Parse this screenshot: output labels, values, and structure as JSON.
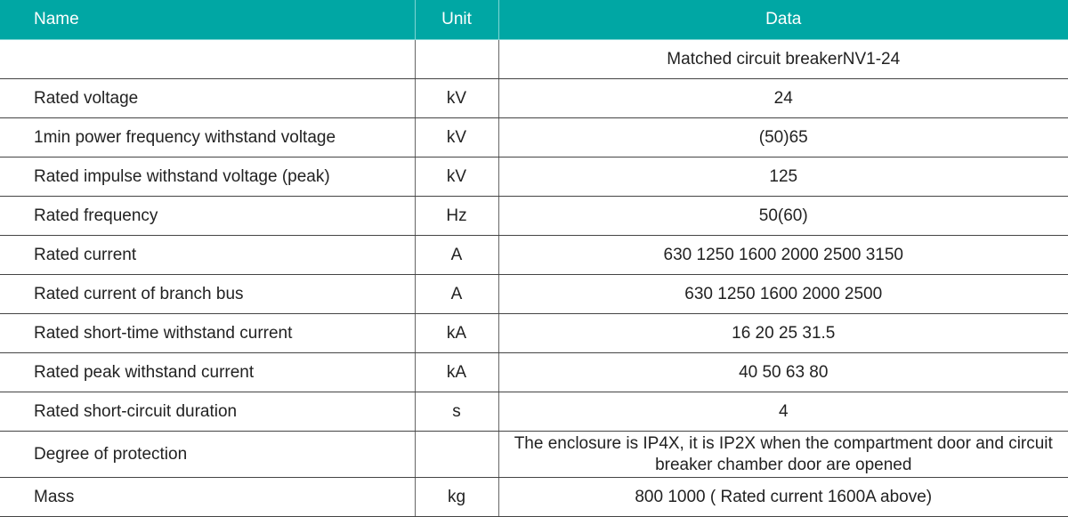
{
  "header": {
    "name": "Name",
    "unit": "Unit",
    "data": "Data"
  },
  "rows": [
    {
      "name": "",
      "unit": "",
      "data": "Matched circuit breakerNV1-24"
    },
    {
      "name": "Rated voltage",
      "unit": "kV",
      "data": "24"
    },
    {
      "name": "1min power frequency withstand voltage",
      "unit": "kV",
      "data": "(50)65"
    },
    {
      "name": "Rated impulse withstand voltage (peak)",
      "unit": "kV",
      "data": "125"
    },
    {
      "name": "Rated frequency",
      "unit": "Hz",
      "data": "50(60)"
    },
    {
      "name": "Rated current",
      "unit": "A",
      "data": "630 1250 1600 2000 2500 3150"
    },
    {
      "name": "Rated current of branch bus",
      "unit": "A",
      "data": "630 1250 1600 2000 2500"
    },
    {
      "name": "Rated short-time withstand current",
      "unit": "kA",
      "data": "16 20 25 31.5"
    },
    {
      "name": "Rated peak withstand current",
      "unit": "kA",
      "data": "40 50 63 80"
    },
    {
      "name": "Rated short-circuit duration",
      "unit": "s",
      "data": "4"
    },
    {
      "name": "Degree of protection",
      "unit": "",
      "data": "The enclosure is IP4X, it is IP2X when the compartment door and circuit breaker chamber door are opened"
    },
    {
      "name": "Mass",
      "unit": "kg",
      "data": "800 1000 ( Rated current 1600A above)"
    }
  ],
  "colors": {
    "header_bg": "#00a7a4",
    "header_text": "#ffffff"
  }
}
